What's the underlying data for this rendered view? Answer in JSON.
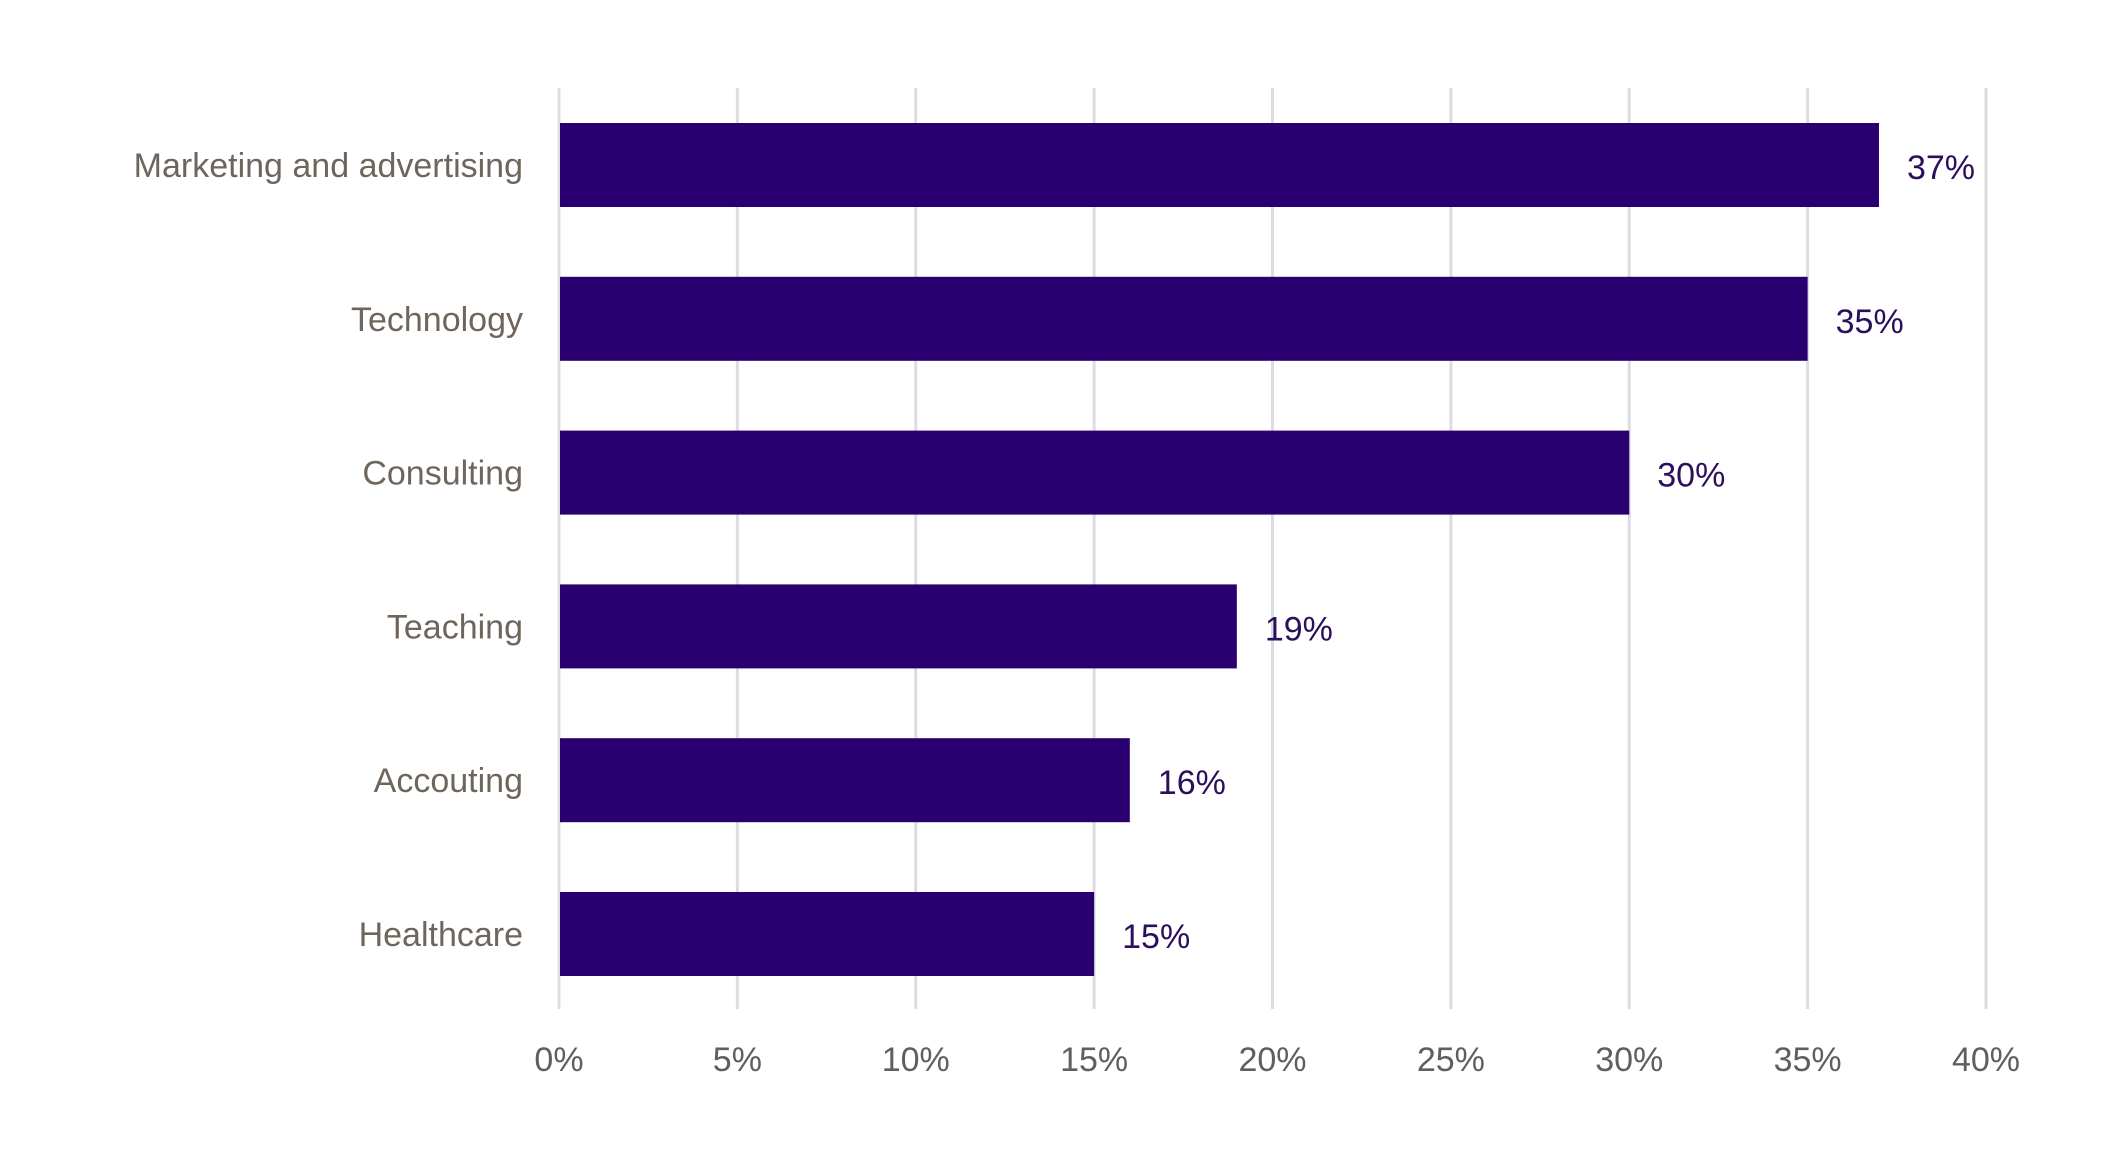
{
  "chart_data": {
    "type": "bar",
    "orientation": "horizontal",
    "categories": [
      "Marketing and advertising",
      "Technology",
      "Consulting",
      "Teaching",
      "Accouting",
      "Healthcare"
    ],
    "values": [
      37,
      35,
      30,
      19,
      16,
      15
    ],
    "value_labels": [
      "37%",
      "35%",
      "30%",
      "19%",
      "16%",
      "15%"
    ],
    "xlim": [
      0,
      40
    ],
    "xticks": [
      0,
      5,
      10,
      15,
      20,
      25,
      30,
      35,
      40
    ],
    "xtick_labels": [
      "0%",
      "5%",
      "10%",
      "15%",
      "20%",
      "25%",
      "30%",
      "35%",
      "40%"
    ],
    "grid": "vertical",
    "colors": {
      "bar": "#2a0070",
      "grid": "#dcdce3",
      "category_text": "#6e665c",
      "value_text": "#2b0f5c",
      "tick_text": "#5f5f5f"
    }
  }
}
